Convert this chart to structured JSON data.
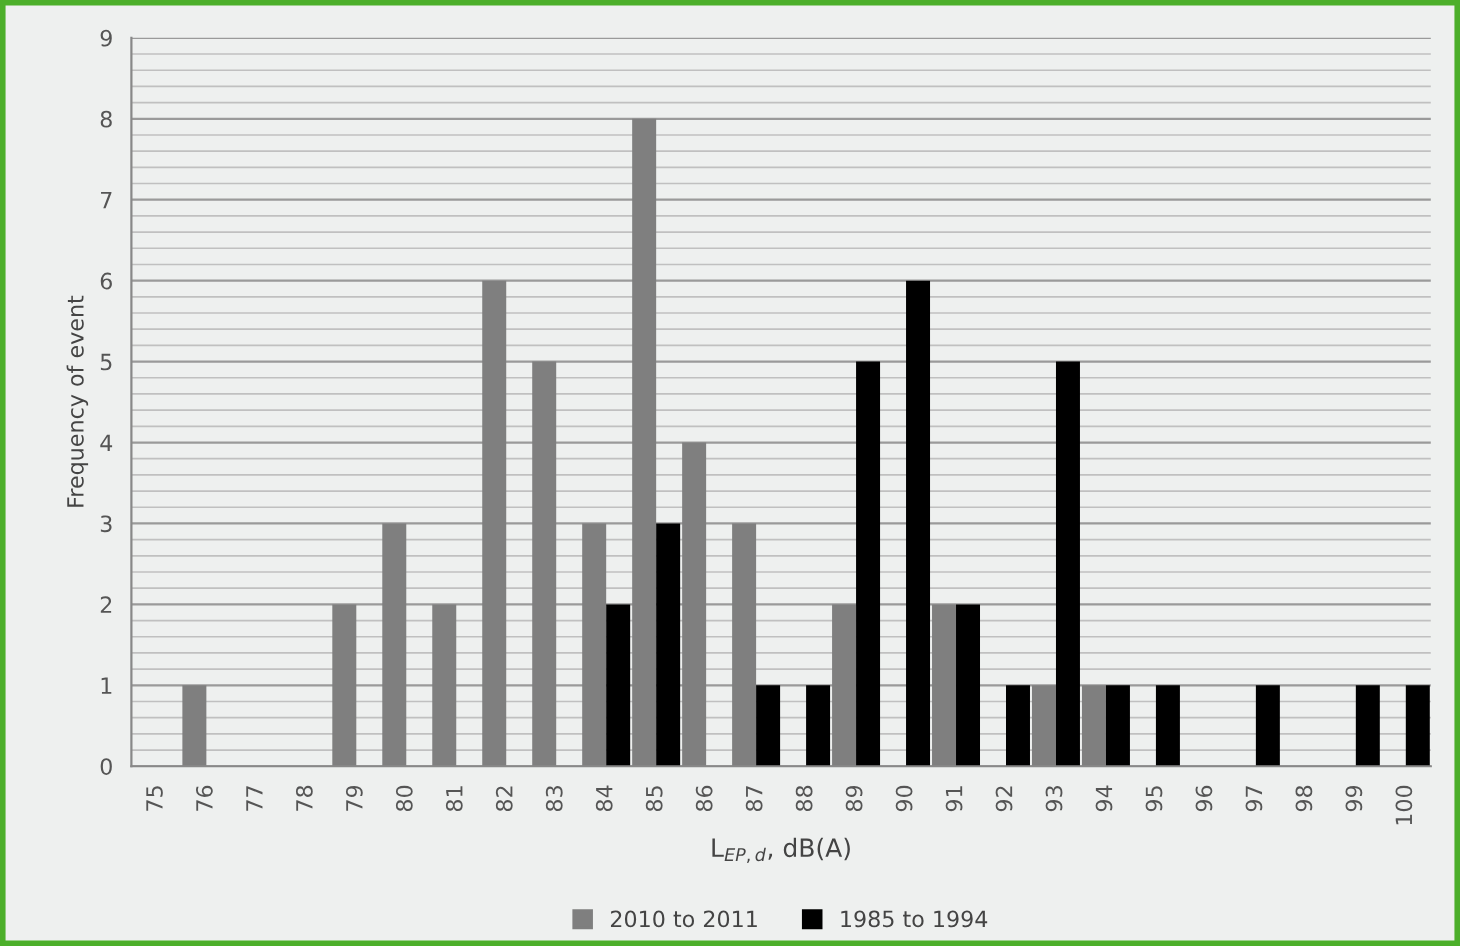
{
  "chart_data": {
    "type": "bar",
    "xlabel": "L$_{EP,d}$, dB(A)",
    "ylabel": "Frequency of event",
    "categories": [
      "75",
      "76",
      "77",
      "78",
      "79",
      "80",
      "81",
      "82",
      "83",
      "84",
      "85",
      "86",
      "87",
      "88",
      "89",
      "90",
      "91",
      "92",
      "93",
      "94",
      "95",
      "96",
      "97",
      "98",
      "99",
      "100"
    ],
    "series": [
      {
        "name": "2010 to 2011",
        "color": "#7f7f7f",
        "values": [
          0,
          1,
          0,
          0,
          2,
          3,
          2,
          6,
          5,
          3,
          8,
          4,
          3,
          0,
          2,
          0,
          2,
          0,
          1,
          1,
          0,
          0,
          0,
          0,
          0,
          0
        ]
      },
      {
        "name": "1985 to 1994",
        "color": "#000000",
        "values": [
          0,
          0,
          0,
          0,
          0,
          0,
          0,
          0,
          0,
          2,
          3,
          0,
          1,
          1,
          5,
          6,
          2,
          1,
          5,
          1,
          1,
          0,
          1,
          0,
          1,
          1
        ]
      }
    ],
    "ylim": [
      0,
      9
    ],
    "yticks": [
      0,
      1,
      2,
      3,
      4,
      5,
      6,
      7,
      8,
      9
    ],
    "grid": "y",
    "legend": "bottom"
  }
}
